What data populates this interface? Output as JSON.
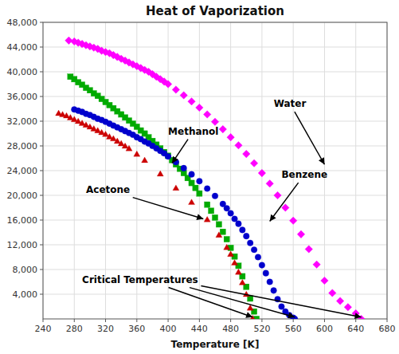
{
  "chart_data": {
    "type": "scatter",
    "title": "Heat of Vaporization",
    "xlabel": "Temperature [K]",
    "xlim": [
      240,
      680
    ],
    "ylim": [
      0,
      48000
    ],
    "xticks": [
      240,
      280,
      320,
      360,
      400,
      440,
      480,
      520,
      560,
      600,
      640,
      680
    ],
    "yticks": [
      {
        "value": 4000,
        "label": "4,000"
      },
      {
        "value": 8000,
        "label": "8,000"
      },
      {
        "value": 12000,
        "label": "12,000"
      },
      {
        "value": 16000,
        "label": "16,000"
      },
      {
        "value": 20000,
        "label": "20,000"
      },
      {
        "value": 24000,
        "label": "24,000"
      },
      {
        "value": 28000,
        "label": "28,000"
      },
      {
        "value": 32000,
        "label": "32,000"
      },
      {
        "value": 36000,
        "label": "36,000"
      },
      {
        "value": 40000,
        "label": "40,000"
      },
      {
        "value": 44000,
        "label": "44,000"
      },
      {
        "value": 48000,
        "label": "48,000"
      }
    ],
    "grid": true,
    "series": [
      {
        "color": "#FF00FF",
        "marker": "diamond",
        "x": [
          273,
          280,
          285,
          290,
          295,
          300,
          305,
          310,
          315,
          320,
          325,
          330,
          335,
          340,
          345,
          350,
          355,
          360,
          365,
          370,
          375,
          380,
          385,
          390,
          395,
          400,
          410,
          420,
          430,
          440,
          450,
          460,
          470,
          480,
          490,
          500,
          510,
          520,
          530,
          540,
          550,
          560,
          570,
          580,
          590,
          600,
          610,
          620,
          630,
          640,
          647
        ],
        "values": [
          45054,
          44900,
          44700,
          44500,
          44300,
          44100,
          43900,
          43700,
          43400,
          43200,
          43000,
          42700,
          42400,
          42100,
          41800,
          41500,
          41200,
          40900,
          40600,
          40300,
          40000,
          39600,
          39200,
          38800,
          38400,
          38000,
          37100,
          36200,
          35200,
          34200,
          33100,
          31900,
          30700,
          29400,
          28100,
          26700,
          25200,
          23600,
          21900,
          20000,
          18000,
          15900,
          13700,
          11300,
          8800,
          6200,
          4200,
          2900,
          1900,
          900,
          0
        ]
      },
      {
        "color": "#00AA00",
        "marker": "square",
        "x": [
          275,
          280,
          285,
          290,
          295,
          300,
          305,
          310,
          315,
          320,
          325,
          330,
          335,
          340,
          345,
          350,
          355,
          360,
          365,
          370,
          375,
          380,
          385,
          390,
          395,
          400,
          405,
          410,
          415,
          420,
          425,
          430,
          435,
          440,
          450,
          455,
          460,
          465,
          470,
          475,
          480,
          485,
          490,
          495,
          500,
          505,
          510,
          513
        ],
        "values": [
          39200,
          38800,
          38300,
          37900,
          37400,
          37000,
          36500,
          36100,
          35600,
          35100,
          34600,
          34100,
          33600,
          33100,
          32600,
          32100,
          31600,
          31100,
          30500,
          30000,
          29400,
          28800,
          28200,
          27600,
          27000,
          26400,
          25700,
          25000,
          24300,
          23600,
          22800,
          22000,
          21200,
          20300,
          18500,
          17500,
          16400,
          15300,
          14100,
          12900,
          11500,
          10100,
          8600,
          6900,
          5200,
          3300,
          1200,
          0
        ]
      },
      {
        "color": "#0000CC",
        "marker": "circle",
        "x": [
          280,
          285,
          290,
          295,
          300,
          305,
          310,
          315,
          320,
          325,
          330,
          335,
          340,
          345,
          350,
          355,
          360,
          365,
          370,
          375,
          380,
          385,
          390,
          395,
          400,
          410,
          420,
          430,
          440,
          450,
          460,
          470,
          475,
          480,
          485,
          490,
          495,
          500,
          505,
          510,
          515,
          520,
          525,
          530,
          535,
          540,
          545,
          550,
          555,
          560,
          562
        ],
        "values": [
          33900,
          33700,
          33500,
          33200,
          33000,
          32700,
          32400,
          32200,
          31900,
          31600,
          31300,
          31000,
          30700,
          30400,
          30100,
          29800,
          29400,
          29100,
          28700,
          28400,
          28000,
          27600,
          27200,
          26800,
          26300,
          25400,
          24400,
          23400,
          22300,
          21100,
          19900,
          18600,
          17900,
          17100,
          16200,
          15400,
          14400,
          13400,
          12300,
          11200,
          10000,
          8700,
          7400,
          6000,
          4600,
          3200,
          2000,
          1200,
          600,
          200,
          0
        ]
      },
      {
        "color": "#CC0000",
        "marker": "triangle",
        "x": [
          260,
          265,
          270,
          275,
          280,
          285,
          290,
          295,
          300,
          305,
          310,
          315,
          320,
          325,
          330,
          335,
          340,
          345,
          350,
          360,
          370,
          390,
          410,
          430,
          450,
          465,
          475,
          480,
          485,
          490,
          495,
          500,
          505,
          508
        ],
        "values": [
          33200,
          33000,
          32800,
          32500,
          32200,
          31900,
          31600,
          31300,
          31000,
          30700,
          30400,
          30100,
          29800,
          29400,
          29100,
          28700,
          28300,
          27900,
          27500,
          26600,
          25600,
          23400,
          21100,
          18800,
          16000,
          13500,
          11500,
          10400,
          9000,
          7500,
          5800,
          3900,
          1700,
          0
        ]
      }
    ],
    "annotations": [
      {
        "text": "Water",
        "xy": [
          600,
          25000
        ],
        "xytext": [
          535,
          35500
        ]
      },
      {
        "text": "Methanol",
        "xy": [
          405,
          25200
        ],
        "xytext": [
          400,
          31000
        ]
      },
      {
        "text": "Benzene",
        "xy": [
          530,
          15800
        ],
        "xytext": [
          545,
          24000
        ]
      },
      {
        "text": "Acetone",
        "xy": [
          445,
          16200
        ],
        "xytext": [
          295,
          21500
        ]
      },
      {
        "text": "Critical Temperatures",
        "xytext": [
          290,
          7000
        ],
        "arrows": [
          {
            "xy": [
              508,
              300
            ],
            "xytext": [
              380,
              6000
            ]
          },
          {
            "xy": [
              562,
              300
            ],
            "xytext": [
              410,
              5700
            ]
          },
          {
            "xy": [
              647,
              300
            ],
            "xytext": [
              440,
              5400
            ]
          }
        ]
      }
    ]
  }
}
